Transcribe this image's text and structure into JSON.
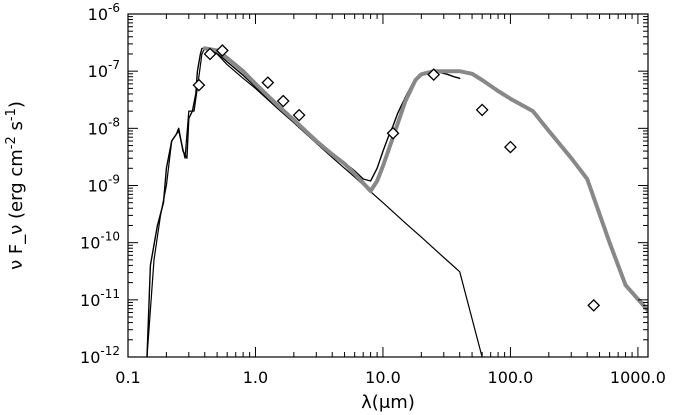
{
  "chart_data": {
    "type": "line",
    "title": "",
    "xlabel": "λ(μm)",
    "ylabel": "ν F_ν (erg cm^-2 s^-1)",
    "x_scale": "log",
    "y_scale": "log",
    "xlim": [
      0.1,
      1200
    ],
    "ylim": [
      1e-12,
      1e-06
    ],
    "x_ticks": [
      0.1,
      1.0,
      10.0,
      100.0,
      1000.0
    ],
    "x_tick_labels": [
      "0.1",
      "1.0",
      "10.0",
      "100.0",
      "1000.0"
    ],
    "y_ticks": [
      1e-12,
      1e-11,
      1e-10,
      1e-09,
      1e-08,
      1e-07,
      1e-06
    ],
    "y_tick_labels": [
      {
        "base": "10",
        "exp": "-12"
      },
      {
        "base": "10",
        "exp": "-11"
      },
      {
        "base": "10",
        "exp": "-10"
      },
      {
        "base": "10",
        "exp": "-9"
      },
      {
        "base": "10",
        "exp": "-8"
      },
      {
        "base": "10",
        "exp": "-7"
      },
      {
        "base": "10",
        "exp": "-6"
      }
    ],
    "grid": false,
    "legend": "none",
    "series": [
      {
        "style": "solid-black-thin",
        "color": "#000000",
        "x": [
          0.141,
          0.16,
          0.18,
          0.2,
          0.22,
          0.25,
          0.28,
          0.3,
          0.33,
          0.36,
          0.38,
          0.4,
          0.45,
          0.5,
          0.6,
          0.8,
          1.0,
          1.5,
          2.0,
          3.0,
          4.0,
          5.0,
          6.0,
          8.0,
          10.0,
          15.0,
          20.0,
          30.0,
          40.0,
          60.0
        ],
        "y": [
          1e-12,
          5e-11,
          3e-10,
          1e-09,
          6e-09,
          9e-09,
          3e-09,
          2e-08,
          2e-08,
          8e-08,
          2e-07,
          2.5e-07,
          2.3e-07,
          2e-07,
          1.3e-07,
          7.5e-08,
          5e-08,
          2.2e-08,
          1.25e-08,
          5.5e-09,
          3.1e-09,
          2e-09,
          1.4e-09,
          7.8e-10,
          5e-10,
          2.2e-10,
          1.25e-10,
          5.5e-11,
          3.1e-11,
          1e-12
        ]
      },
      {
        "style": "solid-black-noisy",
        "color": "#000000",
        "x": [
          0.141,
          0.15,
          0.17,
          0.19,
          0.2,
          0.22,
          0.24,
          0.25,
          0.27,
          0.29,
          0.3,
          0.32,
          0.34,
          0.35,
          0.37,
          0.38,
          0.4,
          0.5,
          0.6,
          0.8,
          1.0,
          1.5,
          2.0,
          3.0,
          4.0,
          5.0,
          6.0,
          7.0,
          8.0,
          9.0,
          10.0,
          11.0,
          12.0,
          13.0,
          15.0,
          17.0,
          20.0,
          22.0,
          25.0,
          28.0,
          32.0,
          36.0,
          40.0
        ],
        "y": [
          1e-12,
          4e-11,
          2e-10,
          5e-10,
          2e-09,
          6e-09,
          8e-09,
          1e-08,
          4e-09,
          3e-09,
          1.5e-08,
          2e-08,
          4e-08,
          1e-07,
          2e-07,
          2.5e-07,
          2.5e-07,
          2.1e-07,
          1.45e-07,
          8.5e-08,
          5.3e-08,
          2.3e-08,
          1.3e-08,
          6e-09,
          3.5e-09,
          2.5e-09,
          1.8e-09,
          1.3e-09,
          1.2e-09,
          2e-09,
          4e-09,
          7e-09,
          1.1e-08,
          1.8e-08,
          3.5e-08,
          6e-08,
          8.5e-08,
          9.5e-08,
          1e-07,
          9.5e-08,
          8.8e-08,
          8e-08,
          7.5e-08
        ]
      },
      {
        "style": "thick-gray",
        "color": "#888888",
        "x": [
          0.4,
          0.5,
          0.6,
          0.8,
          1.0,
          1.5,
          2.0,
          3.0,
          4.0,
          5.0,
          6.0,
          7.0,
          8.0,
          9.0,
          10.0,
          12.0,
          15.0,
          18.0,
          20.0,
          25.0,
          30.0,
          40.0,
          50.0,
          60.0,
          80.0,
          100.0,
          150.0,
          200.0,
          300.0,
          400.0,
          600.0,
          800.0,
          1200.0
        ],
        "y": [
          2.5e-07,
          2.3e-07,
          1.7e-07,
          1e-07,
          6e-08,
          2.5e-08,
          1.4e-08,
          6e-09,
          3.5e-09,
          2.4e-09,
          1.6e-09,
          1.1e-09,
          8e-10,
          1.2e-09,
          2.2e-09,
          7e-09,
          3e-08,
          7e-08,
          8.8e-08,
          1e-07,
          1e-07,
          1e-07,
          9e-08,
          7e-08,
          4.5e-08,
          3.3e-08,
          2e-08,
          9e-09,
          3e-09,
          1.3e-09,
          1e-10,
          1.8e-11,
          6.5e-12
        ]
      },
      {
        "style": "diamond-markers",
        "color": "#000000",
        "x": [
          0.36,
          0.44,
          0.55,
          1.25,
          1.65,
          2.2,
          12.0,
          25.0,
          60.0,
          100.0,
          450.0
        ],
        "y": [
          5.7e-08,
          2e-07,
          2.3e-07,
          6.3e-08,
          3e-08,
          1.7e-08,
          8.2e-09,
          8.7e-08,
          2.1e-08,
          4.7e-09,
          8e-12
        ]
      }
    ]
  }
}
